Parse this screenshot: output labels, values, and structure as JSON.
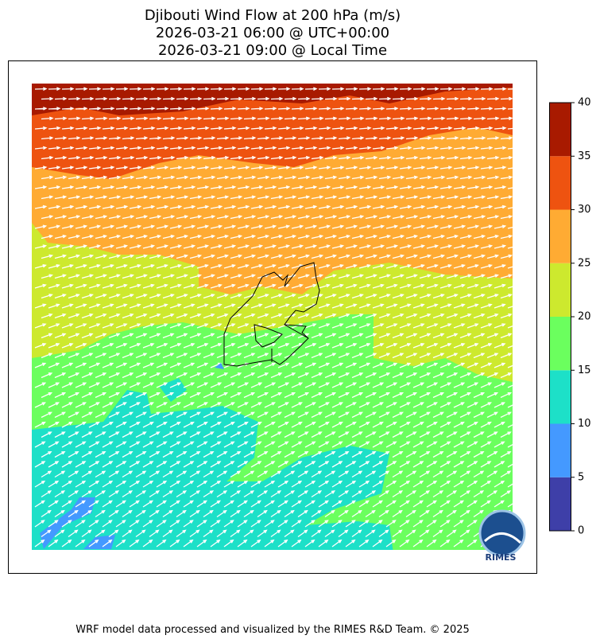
{
  "title": {
    "lines": [
      "Djibouti Wind Flow at 200 hPa (m/s)",
      "2026-03-21 06:00 @ UTC+00:00",
      "2026-03-21 09:00 @ Local Time"
    ]
  },
  "colorbar": {
    "ticks": [
      0,
      5,
      10,
      15,
      20,
      25,
      30,
      35,
      40
    ],
    "colors": [
      "#3e3fa8",
      "#4499ff",
      "#1de0c8",
      "#6bff5e",
      "#cde92e",
      "#ffab33",
      "#ee5310",
      "#a81a00"
    ]
  },
  "logo": "RIMES",
  "footer": "WRF model data processed and visualized by the RIMES R&D Team. © 2025"
}
